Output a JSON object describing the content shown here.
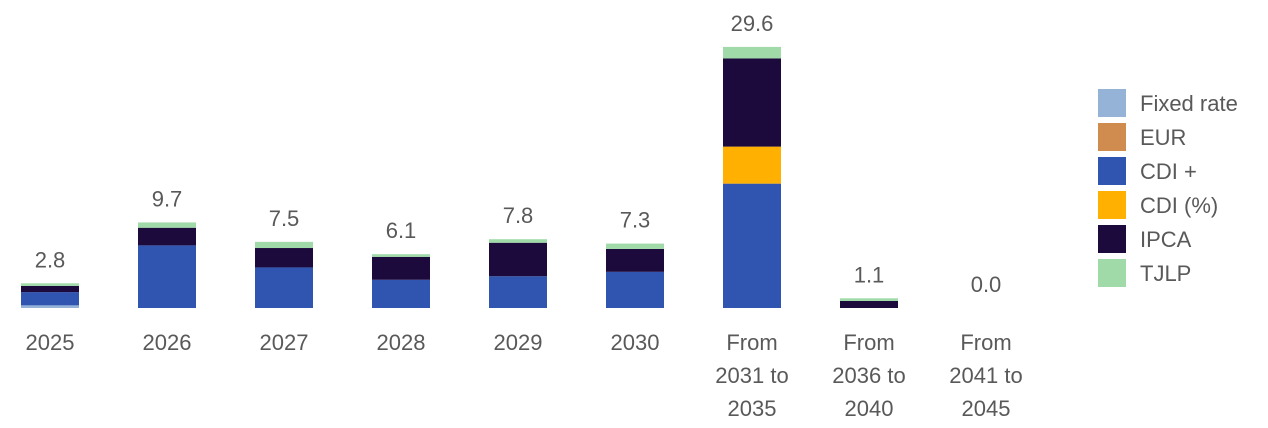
{
  "chart_data": {
    "type": "stacked_bar",
    "categories": [
      "2025",
      "2026",
      "2027",
      "2028",
      "2029",
      "2030",
      "From 2031 to 2035",
      "From 2036 to 2040",
      "From 2041 to 2045"
    ],
    "series": [
      {
        "name": "Fixed rate",
        "color": "#95b3d7",
        "values": [
          0.3,
          0,
          0,
          0,
          0,
          0,
          0,
          0,
          0
        ]
      },
      {
        "name": "EUR",
        "color": "#d08c4e",
        "values": [
          0,
          0,
          0,
          0,
          0,
          0,
          0,
          0,
          0
        ]
      },
      {
        "name": "CDI +",
        "color": "#2f55b0",
        "values": [
          1.5,
          7.1,
          4.6,
          3.2,
          3.6,
          4.1,
          14.1,
          0,
          0
        ]
      },
      {
        "name": "CDI (%)",
        "color": "#ffb000",
        "values": [
          0,
          0,
          0,
          0,
          0,
          0,
          4.2,
          0,
          0
        ]
      },
      {
        "name": "IPCA",
        "color": "#1c0a3c",
        "values": [
          0.7,
          2.0,
          2.2,
          2.6,
          3.8,
          2.6,
          10.0,
          0.8,
          0
        ]
      },
      {
        "name": "TJLP",
        "color": "#9fdaa8",
        "values": [
          0.3,
          0.6,
          0.7,
          0.3,
          0.4,
          0.6,
          1.3,
          0.3,
          0
        ]
      }
    ],
    "totals": [
      2.8,
      9.7,
      7.5,
      6.1,
      7.8,
      7.3,
      29.6,
      1.1,
      0
    ],
    "total_labels": [
      "2.8",
      "9.7",
      "7.5",
      "6.1",
      "7.8",
      "7.3",
      "29.6",
      "1.1",
      "0.0"
    ]
  }
}
